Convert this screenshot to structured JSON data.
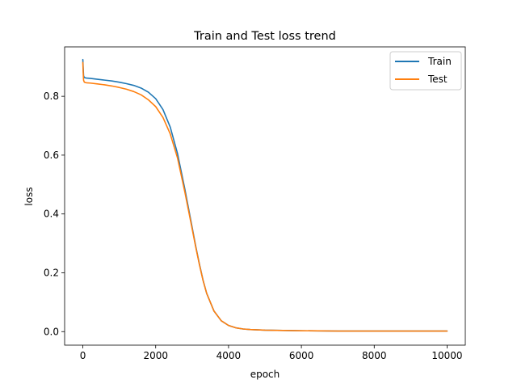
{
  "chart_data": {
    "type": "line",
    "title": "Train and Test loss trend",
    "xlabel": "epoch",
    "ylabel": "loss",
    "xlim": [
      -500,
      10500
    ],
    "ylim": [
      -0.046,
      0.968
    ],
    "xticks": [
      0,
      2000,
      4000,
      6000,
      8000,
      10000
    ],
    "xtick_labels": [
      "0",
      "2000",
      "4000",
      "6000",
      "8000",
      "10000"
    ],
    "yticks": [
      0.0,
      0.2,
      0.4,
      0.6,
      0.8
    ],
    "ytick_labels": [
      "0.0",
      "0.2",
      "0.4",
      "0.6",
      "0.8"
    ],
    "grid": false,
    "legend": {
      "position": "top-right",
      "entries": [
        "Train",
        "Test"
      ]
    },
    "series": [
      {
        "name": "Train",
        "color": "#1f77b4",
        "x": [
          0,
          10,
          20,
          40,
          60,
          100,
          200,
          400,
          600,
          800,
          1000,
          1200,
          1400,
          1600,
          1800,
          2000,
          2200,
          2400,
          2600,
          2800,
          3000,
          3100,
          3200,
          3300,
          3400,
          3600,
          3800,
          4000,
          4200,
          4400,
          4600,
          5000,
          5500,
          6000,
          7000,
          8000,
          9000,
          10000
        ],
        "y": [
          0.925,
          0.895,
          0.87,
          0.864,
          0.863,
          0.862,
          0.861,
          0.858,
          0.855,
          0.852,
          0.848,
          0.843,
          0.837,
          0.828,
          0.814,
          0.792,
          0.755,
          0.695,
          0.605,
          0.485,
          0.355,
          0.29,
          0.23,
          0.175,
          0.13,
          0.07,
          0.037,
          0.021,
          0.013,
          0.009,
          0.007,
          0.005,
          0.004,
          0.003,
          0.002,
          0.002,
          0.002,
          0.002
        ]
      },
      {
        "name": "Test",
        "color": "#ff7f0e",
        "x": [
          0,
          10,
          20,
          40,
          60,
          100,
          200,
          400,
          600,
          800,
          1000,
          1200,
          1400,
          1600,
          1800,
          2000,
          2200,
          2400,
          2600,
          2800,
          3000,
          3100,
          3200,
          3300,
          3400,
          3600,
          3800,
          4000,
          4200,
          4400,
          4600,
          5000,
          5500,
          6000,
          7000,
          8000,
          9000,
          10000
        ],
        "y": [
          0.915,
          0.88,
          0.855,
          0.848,
          0.847,
          0.846,
          0.845,
          0.842,
          0.839,
          0.835,
          0.83,
          0.824,
          0.816,
          0.805,
          0.788,
          0.765,
          0.728,
          0.672,
          0.59,
          0.475,
          0.35,
          0.287,
          0.228,
          0.174,
          0.13,
          0.07,
          0.037,
          0.021,
          0.013,
          0.009,
          0.007,
          0.005,
          0.004,
          0.003,
          0.002,
          0.002,
          0.002,
          0.002
        ]
      }
    ]
  }
}
